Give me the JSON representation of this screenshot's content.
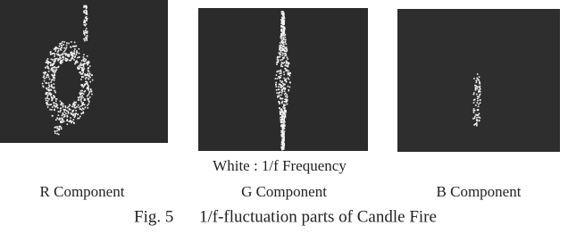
{
  "figure": {
    "legend_note": "White : 1/f Frequency",
    "panels": [
      {
        "label": "R Component"
      },
      {
        "label": "G Component"
      },
      {
        "label": "B Component"
      }
    ],
    "caption": {
      "number": "Fig. 5",
      "text": "1/f-fluctuation parts of Candle Fire"
    }
  }
}
